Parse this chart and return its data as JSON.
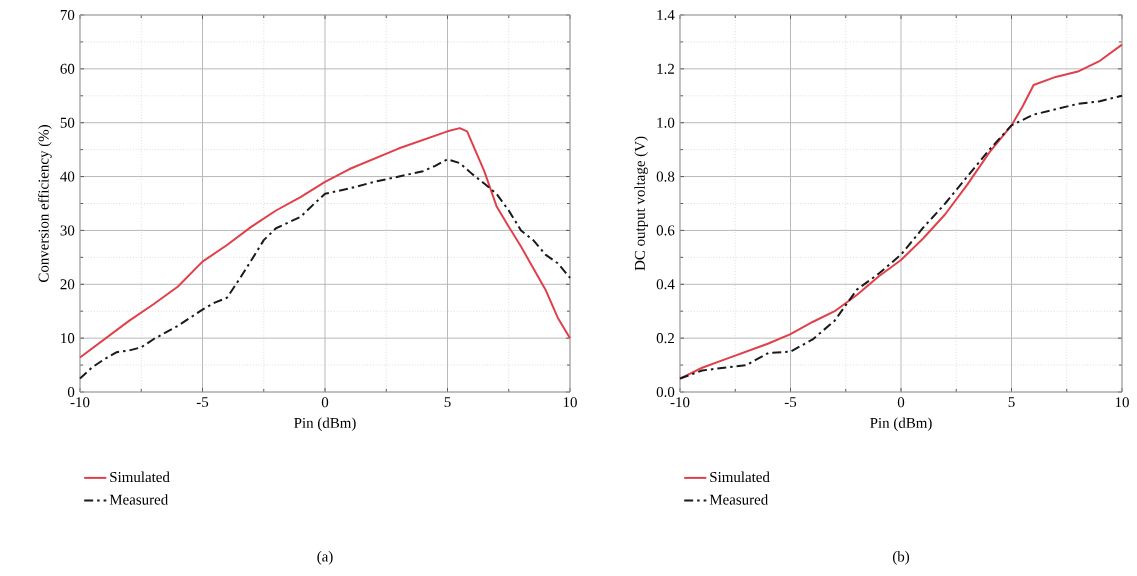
{
  "chart_data": [
    {
      "type": "line",
      "xlabel": "Pin (dBm)",
      "ylabel": "Conversion efficiency (%)",
      "xlim": [
        -10,
        10
      ],
      "ylim": [
        0,
        70
      ],
      "xticks": [
        -10,
        -5,
        0,
        5,
        10
      ],
      "yticks": [
        0,
        10,
        20,
        30,
        40,
        50,
        60,
        70
      ],
      "grid": true,
      "legend": "bottom left",
      "marker": "none",
      "annotations": [
        "(a)"
      ],
      "series": [
        {
          "name": "Simulated",
          "color": "#e0404a",
          "line_style": "solid",
          "x": [
            -10,
            -9,
            -8,
            -7,
            -6,
            -5,
            -4,
            -3,
            -2,
            -1,
            0,
            1,
            2,
            3,
            4,
            5,
            5.5,
            5.8,
            6.5,
            7,
            7.5,
            8,
            9,
            9.5,
            10
          ],
          "values": [
            6.4,
            9.8,
            13.2,
            16.3,
            19.6,
            24.2,
            27.3,
            30.7,
            33.7,
            36.2,
            39,
            41.4,
            43.3,
            45.2,
            46.8,
            48.4,
            49,
            48.4,
            41,
            34.5,
            30.7,
            27,
            19,
            13.8,
            10
          ]
        },
        {
          "name": "Measured",
          "color": "#1a1a1a",
          "line_style": "dashdot",
          "x": [
            -10,
            -9.5,
            -9,
            -8.5,
            -8,
            -7.5,
            -7,
            -6,
            -5,
            -4.5,
            -4,
            -3.5,
            -3,
            -2.5,
            -2,
            -1,
            -0.5,
            0,
            1,
            2,
            3,
            4,
            4.5,
            5,
            5.5,
            6,
            6.5,
            7,
            7.5,
            8,
            8.5,
            9,
            9.5,
            10
          ],
          "values": [
            2.5,
            4.6,
            6.1,
            7.4,
            7.7,
            8.3,
            9.8,
            12.3,
            15.3,
            16.6,
            17.5,
            20.9,
            24.5,
            28.2,
            30.4,
            32.5,
            34.7,
            36.8,
            37.8,
            39,
            40,
            41,
            42,
            43.2,
            42.5,
            40.5,
            38.7,
            36.8,
            33.7,
            30,
            28.2,
            25.5,
            23.9,
            21.2
          ]
        }
      ]
    },
    {
      "type": "line",
      "xlabel": "Pin (dBm)",
      "ylabel": "DC output voltage (V)",
      "xlim": [
        -10,
        10
      ],
      "ylim": [
        0,
        1.4
      ],
      "xticks": [
        -10,
        -5,
        0,
        5,
        10
      ],
      "yticks": [
        {
          "value": 0,
          "label": "0.0"
        },
        0.2,
        0.4,
        0.6,
        0.8,
        {
          "value": 1,
          "label": "1.0"
        },
        1.2,
        1.4
      ],
      "grid": true,
      "legend": "bottom left",
      "marker": "none",
      "annotations": [
        "(b)"
      ],
      "series": [
        {
          "name": "Simulated",
          "color": "#e0404a",
          "line_style": "solid",
          "x": [
            -10,
            -9,
            -8,
            -7,
            -6,
            -5,
            -4,
            -3,
            -2,
            -1,
            0,
            1,
            2,
            3,
            4,
            5,
            5.5,
            6,
            7,
            8,
            9,
            10
          ],
          "values": [
            0.05,
            0.09,
            0.12,
            0.15,
            0.18,
            0.215,
            0.26,
            0.3,
            0.36,
            0.43,
            0.49,
            0.57,
            0.66,
            0.77,
            0.89,
            0.99,
            1.06,
            1.14,
            1.17,
            1.19,
            1.23,
            1.29
          ]
        },
        {
          "name": "Measured",
          "color": "#1a1a1a",
          "line_style": "dashdot",
          "x": [
            -10,
            -9,
            -8,
            -7,
            -6,
            -5,
            -4,
            -3,
            -2,
            -1,
            0,
            1,
            2,
            3,
            4,
            5,
            5.5,
            6,
            7,
            8,
            9,
            10
          ],
          "values": [
            0.05,
            0.08,
            0.09,
            0.1,
            0.145,
            0.15,
            0.195,
            0.265,
            0.38,
            0.44,
            0.51,
            0.61,
            0.7,
            0.8,
            0.9,
            0.99,
            1.01,
            1.03,
            1.05,
            1.07,
            1.08,
            1.1
          ]
        }
      ]
    }
  ]
}
